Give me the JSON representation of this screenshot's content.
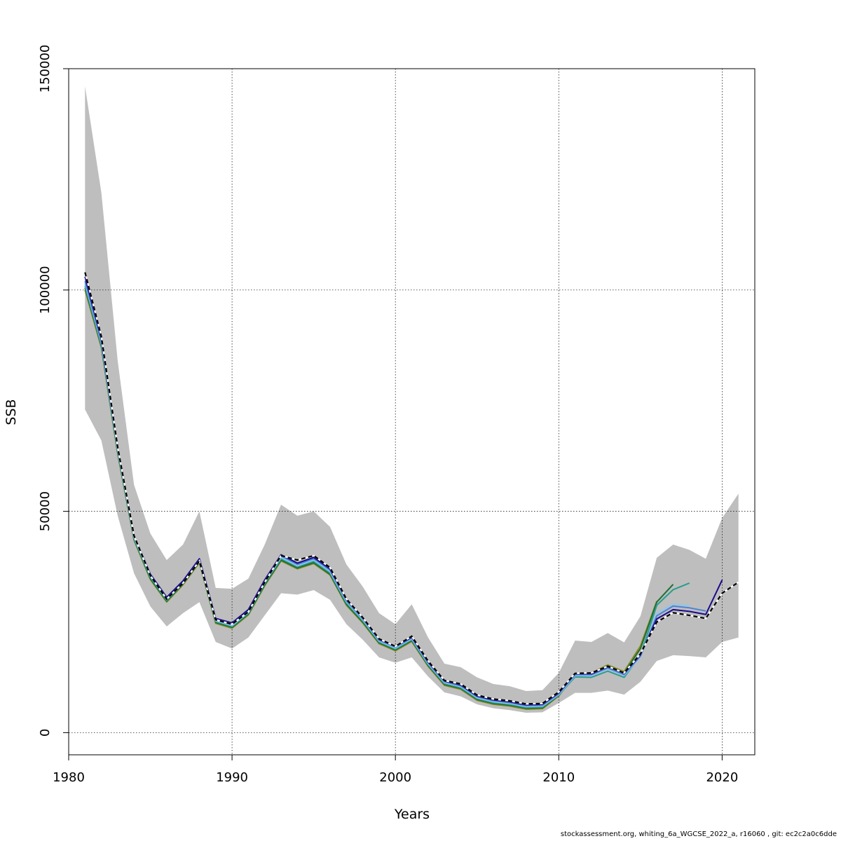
{
  "chart_data": {
    "type": "line",
    "title": "",
    "xlabel": "Years",
    "ylabel": "SSB",
    "xlim": [
      1980,
      2022
    ],
    "ylim": [
      -5000,
      150000
    ],
    "x_ticks": [
      1980,
      1990,
      2000,
      2010,
      2020
    ],
    "x_tick_labels": [
      "1980",
      "1990",
      "2000",
      "2010",
      "2020"
    ],
    "y_ticks": [
      0,
      50000,
      100000,
      150000
    ],
    "y_tick_labels": [
      "0",
      "50000",
      "100000",
      "150000"
    ],
    "grid": true,
    "confidence_band": {
      "color": "#bebebe",
      "x": [
        1981,
        1982,
        1983,
        1984,
        1985,
        1986,
        1987,
        1988,
        1989,
        1990,
        1991,
        1992,
        1993,
        1994,
        1995,
        1996,
        1997,
        1998,
        1999,
        2000,
        2001,
        2002,
        2003,
        2004,
        2005,
        2006,
        2007,
        2008,
        2009,
        2010,
        2011,
        2012,
        2013,
        2014,
        2015,
        2016,
        2017,
        2018,
        2019,
        2020,
        2021
      ],
      "lower": [
        73000,
        66000,
        49000,
        36000,
        28500,
        24000,
        27000,
        29500,
        20500,
        19000,
        21500,
        26500,
        31500,
        31200,
        32200,
        30000,
        24500,
        21000,
        17000,
        15800,
        17000,
        12700,
        9100,
        8200,
        6400,
        5500,
        5100,
        4500,
        4600,
        6700,
        9000,
        9000,
        9500,
        8600,
        11500,
        16200,
        17500,
        17300,
        17000,
        20500,
        21500
      ],
      "upper": [
        146000,
        122000,
        84000,
        56000,
        45000,
        39000,
        42500,
        50000,
        32700,
        32500,
        34800,
        42500,
        51500,
        49000,
        50000,
        46500,
        38000,
        33000,
        27000,
        24500,
        29000,
        21500,
        15600,
        14800,
        12500,
        11000,
        10500,
        9400,
        9600,
        13500,
        20800,
        20500,
        22500,
        20400,
        26300,
        39500,
        42500,
        41300,
        39300,
        48500,
        54000
      ]
    },
    "series": [
      {
        "name": "",
        "color": "#000000",
        "dashed": true,
        "x": [
          1981,
          1982,
          1983,
          1984,
          1985,
          1986,
          1987,
          1988,
          1989,
          1990,
          1991,
          1992,
          1993,
          1994,
          1995,
          1996,
          1997,
          1998,
          1999,
          2000,
          2001,
          2002,
          2003,
          2004,
          2005,
          2006,
          2007,
          2008,
          2009,
          2010,
          2011,
          2012,
          2013,
          2014,
          2015,
          2016,
          2017,
          2018,
          2019,
          2020,
          2021
        ],
        "values": [
          104000,
          89500,
          64500,
          44500,
          35500,
          30200,
          33800,
          38800,
          25500,
          24500,
          27300,
          34000,
          40000,
          39000,
          40000,
          37300,
          30200,
          26000,
          21200,
          19500,
          21800,
          16200,
          11800,
          11000,
          8500,
          7600,
          7200,
          6500,
          6600,
          9200,
          13400,
          13500,
          15000,
          13500,
          17800,
          25000,
          27100,
          26500,
          25800,
          31500,
          34000
        ]
      },
      {
        "name": "",
        "color": "#1a0a8c",
        "dashed": false,
        "x": [
          1981,
          1982,
          1983,
          1984,
          1985,
          1986,
          1987,
          1988,
          1989,
          1990,
          1991,
          1992,
          1993,
          1994,
          1995,
          1996,
          1997,
          1998,
          1999,
          2000,
          2001,
          2002,
          2003,
          2004,
          2005,
          2006,
          2007,
          2008,
          2009,
          2010,
          2011,
          2012,
          2013,
          2014,
          2015,
          2016,
          2017,
          2018,
          2019,
          2020
        ],
        "values": [
          103000,
          89000,
          64500,
          44500,
          35800,
          30600,
          34300,
          39300,
          25800,
          24800,
          27800,
          34500,
          40200,
          38300,
          39600,
          37000,
          30100,
          26000,
          21100,
          19500,
          21600,
          16000,
          11700,
          10800,
          8300,
          7400,
          7000,
          6300,
          6400,
          9000,
          13300,
          13300,
          14900,
          13400,
          17600,
          25700,
          27800,
          27400,
          26700,
          34500
        ]
      },
      {
        "name": "",
        "color": "#4f82d6",
        "dashed": false,
        "x": [
          1981,
          1982,
          1983,
          1984,
          1985,
          1986,
          1987,
          1988,
          1989,
          1990,
          1991,
          1992,
          1993,
          1994,
          1995,
          1996,
          1997,
          1998,
          1999,
          2000,
          2001,
          2002,
          2003,
          2004,
          2005,
          2006,
          2007,
          2008,
          2009,
          2010,
          2011,
          2012,
          2013,
          2014,
          2015,
          2016,
          2017,
          2018,
          2019
        ],
        "values": [
          102000,
          88300,
          64100,
          44300,
          35700,
          30500,
          34200,
          39200,
          25500,
          24400,
          27500,
          34200,
          39900,
          38000,
          39300,
          36700,
          29800,
          25700,
          20900,
          19300,
          21400,
          15800,
          11500,
          10600,
          8100,
          7200,
          6800,
          6100,
          6200,
          8800,
          13100,
          13100,
          14600,
          13100,
          17300,
          26400,
          28600,
          28200,
          27500
        ]
      },
      {
        "name": "",
        "color": "#8ec8ea",
        "dashed": false,
        "x": [
          1981,
          1982,
          1983,
          1984,
          1985,
          1986,
          1987,
          1988,
          1989,
          1990,
          1991,
          1992,
          1993,
          1994,
          1995,
          1996,
          1997,
          1998,
          1999,
          2000,
          2001,
          2002,
          2003,
          2004,
          2005,
          2006,
          2007,
          2008,
          2009,
          2010,
          2011,
          2012,
          2013,
          2014,
          2015,
          2016,
          2017,
          2018
        ],
        "values": [
          101500,
          88000,
          63900,
          44100,
          35400,
          30200,
          34000,
          39000,
          25300,
          24200,
          27200,
          34000,
          39600,
          37700,
          39000,
          36400,
          29600,
          25500,
          20700,
          19100,
          21200,
          15600,
          11300,
          10400,
          7900,
          7000,
          6600,
          5900,
          6000,
          8600,
          12900,
          12900,
          14400,
          12900,
          17100,
          27000,
          29000,
          28800
        ]
      },
      {
        "name": "",
        "color": "#2a9d8f",
        "dashed": false,
        "x": [
          1981,
          1982,
          1983,
          1984,
          1985,
          1986,
          1987,
          1988,
          1989,
          1990,
          1991,
          1992,
          1993,
          1994,
          1995,
          1996,
          1997,
          1998,
          1999,
          2000,
          2001,
          2002,
          2003,
          2004,
          2005,
          2006,
          2007,
          2008,
          2009,
          2010,
          2011,
          2012,
          2013,
          2014,
          2015,
          2016,
          2017,
          2018
        ],
        "values": [
          101000,
          87600,
          63600,
          43900,
          35100,
          29900,
          33800,
          38800,
          25100,
          24000,
          27000,
          33700,
          39300,
          37500,
          38700,
          36100,
          29300,
          25300,
          20500,
          18900,
          21000,
          15400,
          11100,
          10200,
          7700,
          6800,
          6400,
          5700,
          5800,
          8500,
          12600,
          12500,
          13900,
          12500,
          17400,
          28800,
          32300,
          33800
        ]
      },
      {
        "name": "",
        "color": "#1f6e33",
        "dashed": false,
        "x": [
          1981,
          1982,
          1983,
          1984,
          1985,
          1986,
          1987,
          1988,
          1989,
          1990,
          1991,
          1992,
          1993,
          1994,
          1995,
          1996,
          1997,
          1998,
          1999,
          2000,
          2001,
          2002,
          2003,
          2004,
          2005,
          2006,
          2007,
          2008,
          2009,
          2010,
          2011,
          2012,
          2013,
          2014,
          2015,
          2016,
          2017
        ],
        "values": [
          100500,
          87300,
          63300,
          43700,
          34800,
          29700,
          33600,
          38600,
          24900,
          23800,
          26800,
          33400,
          39000,
          37200,
          38400,
          35800,
          29000,
          25000,
          20300,
          18700,
          20800,
          15200,
          10900,
          10000,
          7500,
          6600,
          6200,
          5500,
          5600,
          8400,
          13100,
          13300,
          15100,
          13500,
          19000,
          29500,
          33500
        ]
      },
      {
        "name": "",
        "color": "#8a8a1e",
        "dashed": false,
        "x": [
          1981,
          1982,
          1983,
          1984,
          1985,
          1986,
          1987,
          1988,
          1989,
          1990,
          1991,
          1992,
          1993,
          1994,
          1995,
          1996,
          1997,
          1998,
          1999,
          2000,
          2001,
          2002,
          2003,
          2004,
          2005,
          2006,
          2007,
          2008,
          2009,
          2010,
          2011,
          2012,
          2013,
          2014,
          2015,
          2016
        ],
        "values": [
          100000,
          87000,
          63000,
          43500,
          34600,
          29500,
          33400,
          38400,
          24700,
          23600,
          26600,
          33200,
          38800,
          37000,
          38200,
          35600,
          28800,
          24800,
          20100,
          18500,
          20600,
          15000,
          10700,
          9800,
          7300,
          6400,
          6000,
          5300,
          5400,
          8300,
          13200,
          13500,
          15300,
          13800,
          19600,
          29700
        ]
      }
    ]
  },
  "footer": "stockassessment.org, whiting_6a_WGCSE_2022_a, r16060 , git: ec2c2a0c6dde"
}
